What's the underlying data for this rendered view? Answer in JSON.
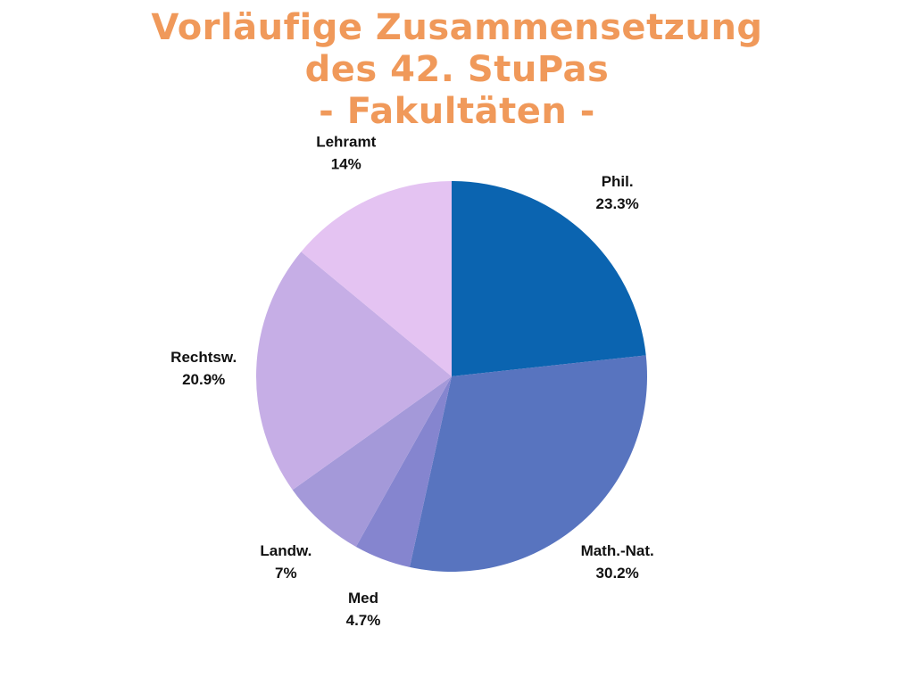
{
  "title_lines": [
    "Vorläufige Zusammensetzung",
    "des 42. StuPas",
    "- Fakultäten -"
  ],
  "chart_data": {
    "type": "pie",
    "title": "Vorläufige Zusammensetzung des 42. StuPas - Fakultäten -",
    "start_angle_deg": 0,
    "direction": "clockwise",
    "slices": [
      {
        "name": "Phil.",
        "value": 23.3,
        "label": "23.3%",
        "color": "#0b64b0"
      },
      {
        "name": "Math.-Nat.",
        "value": 30.2,
        "label": "30.2%",
        "color": "#5874bf"
      },
      {
        "name": "Med",
        "value": 4.7,
        "label": "4.7%",
        "color": "#8585cf"
      },
      {
        "name": "Landw.",
        "value": 7,
        "label": "7%",
        "color": "#a499d9"
      },
      {
        "name": "Rechtsw.",
        "value": 20.9,
        "label": "20.9%",
        "color": "#c6aee6"
      },
      {
        "name": "Lehramt",
        "value": 14,
        "label": "14%",
        "color": "#e4c3f2"
      }
    ]
  }
}
